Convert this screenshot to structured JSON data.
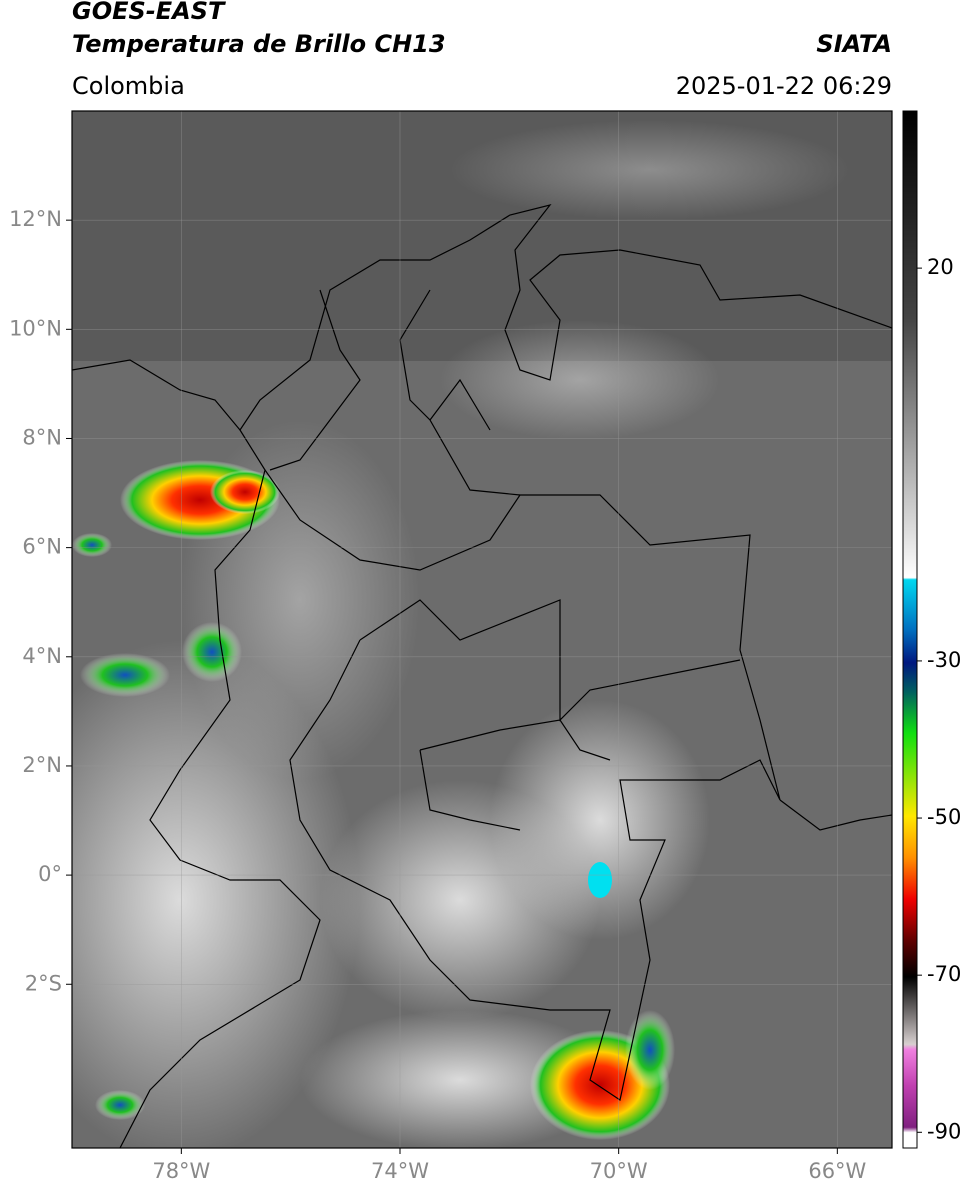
{
  "header": {
    "title": "GOES-EAST",
    "subtitle": "Temperatura de Brillo CH13",
    "source": "SIATA",
    "region": "Colombia",
    "datetime": "2025-01-22 06:29"
  },
  "map": {
    "lonlim": [
      -80,
      -65
    ],
    "latlim": [
      -5,
      14
    ],
    "grid": true,
    "lon_ticks": [
      {
        "value": -78,
        "label": "78°W"
      },
      {
        "value": -74,
        "label": "74°W"
      },
      {
        "value": -70,
        "label": "70°W"
      },
      {
        "value": -66,
        "label": "66°W"
      }
    ],
    "lat_ticks": [
      {
        "value": 12,
        "label": "12°N"
      },
      {
        "value": 10,
        "label": "10°N"
      },
      {
        "value": 8,
        "label": "8°N"
      },
      {
        "value": 6,
        "label": "6°N"
      },
      {
        "value": 4,
        "label": "4°N"
      },
      {
        "value": 2,
        "label": "2°N"
      },
      {
        "value": 0,
        "label": "0°"
      },
      {
        "value": -2,
        "label": "2°S"
      }
    ]
  },
  "colorbar": {
    "lim": [
      -92,
      40
    ],
    "ticks": [
      20,
      -30,
      -50,
      -70,
      -90
    ]
  }
}
